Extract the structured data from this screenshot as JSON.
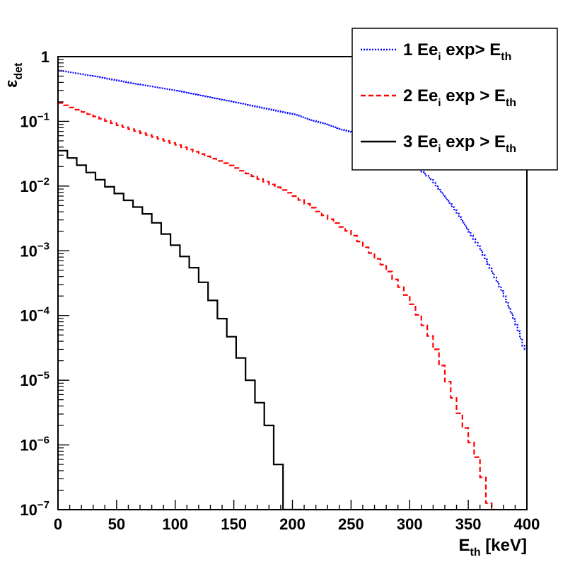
{
  "chart_data": {
    "type": "line",
    "style": "step-histogram",
    "xlabel": "E",
    "xlabel_sub": "th",
    "xlabel_unit": "[keV]",
    "ylabel": "ε",
    "ylabel_sub": "det",
    "xlim": [
      0,
      400
    ],
    "ylim": [
      1e-07,
      1
    ],
    "y_scale": "log",
    "grid": false,
    "legend_placement": "top-right",
    "x_ticks": [
      "0",
      "50",
      "100",
      "150",
      "200",
      "250",
      "300",
      "350",
      "400"
    ],
    "y_ticks": [
      {
        "base": "1",
        "exp": ""
      },
      {
        "base": "10",
        "exp": "−1"
      },
      {
        "base": "10",
        "exp": "−2"
      },
      {
        "base": "10",
        "exp": "−3"
      },
      {
        "base": "10",
        "exp": "−4"
      },
      {
        "base": "10",
        "exp": "−5"
      },
      {
        "base": "10",
        "exp": "−6"
      },
      {
        "base": "10",
        "exp": "−7"
      }
    ],
    "series": [
      {
        "name": "1 Ee_i exp> E_th",
        "legend": {
          "pre": "1 Ee",
          "sub1": "i",
          "mid": " exp> E",
          "sub2": "th"
        },
        "color": "#0000ff",
        "dash": "dotted",
        "bin_width": 2,
        "x_start": 0,
        "points": [
          [
            0,
            0.62
          ],
          [
            100,
            0.3
          ],
          [
            200,
            0.13
          ],
          [
            260,
            0.06
          ],
          [
            300,
            0.025
          ],
          [
            320,
            0.012
          ],
          [
            340,
            0.004
          ],
          [
            360,
            0.0011
          ],
          [
            380,
            0.00022
          ],
          [
            392,
            6.5e-05
          ],
          [
            398,
            3e-05
          ]
        ]
      },
      {
        "name": "2 Ee_i exp > E_th",
        "legend": {
          "pre": "2 Ee",
          "sub1": "i",
          "mid": " exp > E",
          "sub2": "th"
        },
        "color": "#ff0000",
        "dash": "dashed",
        "bin_width": 5,
        "x_start": 0,
        "points": [
          [
            0,
            0.2
          ],
          [
            50,
            0.09
          ],
          [
            100,
            0.045
          ],
          [
            150,
            0.02
          ],
          [
            200,
            0.0075
          ],
          [
            250,
            0.0019
          ],
          [
            280,
            0.00055
          ],
          [
            300,
            0.00018
          ],
          [
            320,
            4e-05
          ],
          [
            340,
            4e-06
          ],
          [
            360,
            5e-07
          ],
          [
            370,
            8e-08
          ]
        ]
      },
      {
        "name": "3 Ee_i exp > E_th",
        "legend": {
          "pre": "3 Ee",
          "sub1": "i",
          "mid": " exp > E",
          "sub2": "th"
        },
        "color": "#000000",
        "dash": "solid",
        "bin_width": 8,
        "x_start": 0,
        "points": [
          [
            0,
            0.04
          ],
          [
            40,
            0.011
          ],
          [
            80,
            0.0033
          ],
          [
            120,
            0.00045
          ],
          [
            150,
            4e-05
          ],
          [
            170,
            5.5e-06
          ],
          [
            180,
            2e-06
          ],
          [
            184,
            5e-07
          ],
          [
            192,
            5e-07
          ],
          [
            194,
            8e-08
          ]
        ]
      }
    ]
  }
}
